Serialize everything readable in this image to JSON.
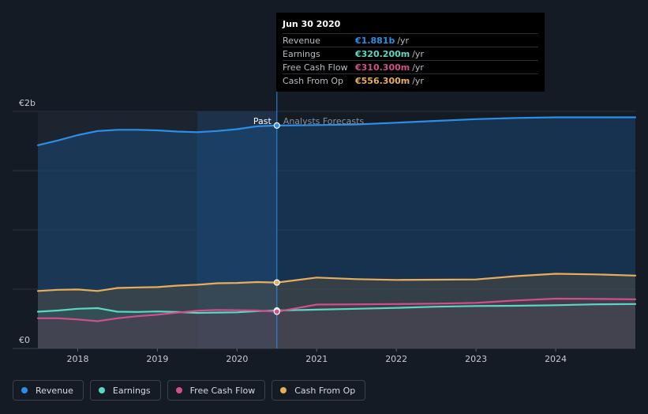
{
  "tooltip": {
    "date": "Jun 30 2020",
    "rows": [
      {
        "label": "Revenue",
        "value": "€1.881b",
        "unit": "/yr",
        "color": "#2d8ee6"
      },
      {
        "label": "Earnings",
        "value": "€320.200m",
        "unit": "/yr",
        "color": "#5ad8c4"
      },
      {
        "label": "Free Cash Flow",
        "value": "€310.300m",
        "unit": "/yr",
        "color": "#d1508c"
      },
      {
        "label": "Cash From Op",
        "value": "€556.300m",
        "unit": "/yr",
        "color": "#e8ae5c"
      }
    ]
  },
  "legend": [
    {
      "label": "Revenue",
      "color": "#2d8ee6"
    },
    {
      "label": "Earnings",
      "color": "#5ad8c4"
    },
    {
      "label": "Free Cash Flow",
      "color": "#d1508c"
    },
    {
      "label": "Cash From Op",
      "color": "#e8ae5c"
    }
  ],
  "chart_data": {
    "type": "line",
    "ylim": [
      0,
      2000
    ],
    "y_ticks": [
      {
        "value": 2000,
        "label": "€2b"
      },
      {
        "value": 0,
        "label": "€0"
      }
    ],
    "xlim": [
      2017.5,
      2025.0
    ],
    "x_ticks": [
      2018,
      2019,
      2020,
      2021,
      2022,
      2023,
      2024
    ],
    "divider_x": 2020.5,
    "past_label": "Past",
    "forecast_label": "Analysts Forecasts",
    "grid": true,
    "legend_position": "bottom-left",
    "series": [
      {
        "name": "Revenue",
        "color": "#2d8ee6",
        "points": [
          [
            2017.5,
            1715
          ],
          [
            2017.75,
            1755
          ],
          [
            2018.0,
            1800
          ],
          [
            2018.25,
            1835
          ],
          [
            2018.5,
            1845
          ],
          [
            2018.75,
            1845
          ],
          [
            2019.0,
            1840
          ],
          [
            2019.25,
            1830
          ],
          [
            2019.5,
            1825
          ],
          [
            2019.75,
            1835
          ],
          [
            2020.0,
            1850
          ],
          [
            2020.25,
            1875
          ],
          [
            2020.5,
            1881
          ],
          [
            2021.0,
            1885
          ],
          [
            2021.5,
            1890
          ],
          [
            2022.0,
            1905
          ],
          [
            2022.5,
            1920
          ],
          [
            2023.0,
            1935
          ],
          [
            2023.5,
            1945
          ],
          [
            2024.0,
            1950
          ],
          [
            2024.5,
            1950
          ],
          [
            2025.0,
            1950
          ]
        ]
      },
      {
        "name": "Cash From Op",
        "color": "#e8ae5c",
        "points": [
          [
            2017.5,
            485
          ],
          [
            2017.75,
            495
          ],
          [
            2018.0,
            497
          ],
          [
            2018.25,
            485
          ],
          [
            2018.5,
            510
          ],
          [
            2018.75,
            515
          ],
          [
            2019.0,
            517
          ],
          [
            2019.25,
            530
          ],
          [
            2019.5,
            537
          ],
          [
            2019.75,
            550
          ],
          [
            2020.0,
            553
          ],
          [
            2020.25,
            560
          ],
          [
            2020.5,
            556
          ],
          [
            2021.0,
            598
          ],
          [
            2021.5,
            585
          ],
          [
            2022.0,
            578
          ],
          [
            2022.5,
            580
          ],
          [
            2023.0,
            582
          ],
          [
            2023.5,
            610
          ],
          [
            2024.0,
            630
          ],
          [
            2024.5,
            625
          ],
          [
            2025.0,
            615
          ]
        ]
      },
      {
        "name": "Earnings",
        "color": "#5ad8c4",
        "points": [
          [
            2017.5,
            310
          ],
          [
            2017.75,
            320
          ],
          [
            2018.0,
            335
          ],
          [
            2018.25,
            340
          ],
          [
            2018.5,
            310
          ],
          [
            2018.75,
            308
          ],
          [
            2019.0,
            312
          ],
          [
            2019.25,
            307
          ],
          [
            2019.5,
            300
          ],
          [
            2019.75,
            303
          ],
          [
            2020.0,
            305
          ],
          [
            2020.25,
            315
          ],
          [
            2020.5,
            320
          ],
          [
            2021.0,
            327
          ],
          [
            2021.5,
            335
          ],
          [
            2022.0,
            342
          ],
          [
            2022.5,
            352
          ],
          [
            2023.0,
            358
          ],
          [
            2023.5,
            360
          ],
          [
            2024.0,
            365
          ],
          [
            2024.5,
            372
          ],
          [
            2025.0,
            375
          ]
        ]
      },
      {
        "name": "Free Cash Flow",
        "color": "#d1508c",
        "points": [
          [
            2017.5,
            255
          ],
          [
            2017.75,
            255
          ],
          [
            2018.0,
            245
          ],
          [
            2018.25,
            230
          ],
          [
            2018.5,
            255
          ],
          [
            2018.75,
            272
          ],
          [
            2019.0,
            285
          ],
          [
            2019.25,
            302
          ],
          [
            2019.5,
            318
          ],
          [
            2019.75,
            325
          ],
          [
            2020.0,
            322
          ],
          [
            2020.25,
            320
          ],
          [
            2020.5,
            310
          ],
          [
            2021.0,
            370
          ],
          [
            2021.5,
            372
          ],
          [
            2022.0,
            375
          ],
          [
            2022.5,
            378
          ],
          [
            2023.0,
            385
          ],
          [
            2023.5,
            405
          ],
          [
            2024.0,
            420
          ],
          [
            2024.5,
            418
          ],
          [
            2025.0,
            415
          ]
        ]
      }
    ]
  }
}
